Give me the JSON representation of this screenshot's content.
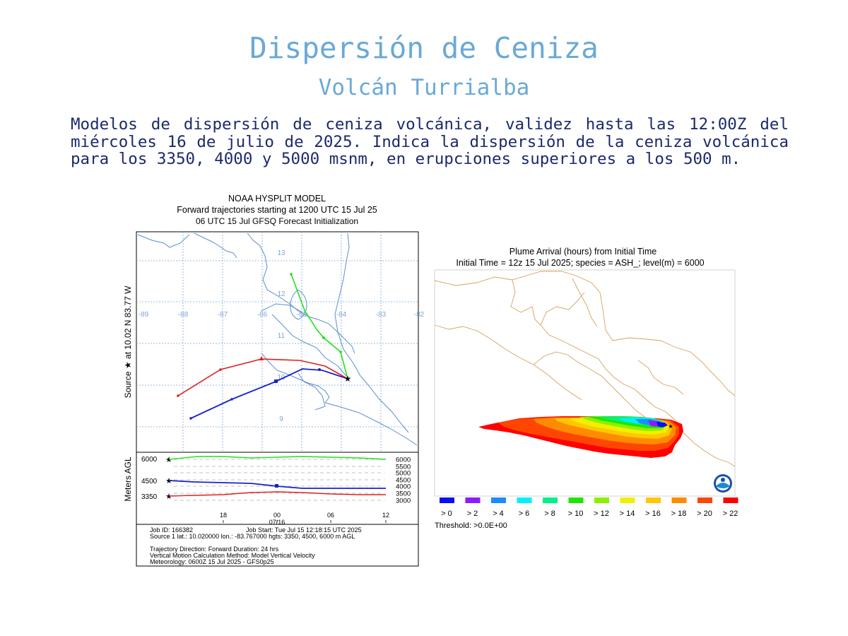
{
  "header": {
    "title": "Dispersión de Ceniza",
    "subtitle": "Volcán Turrialba",
    "description": "Modelos de dispersión de ceniza volcánica, validez hasta las 12:00Z del miércoles 16 de julio de 2025. Indica la dispersión de la ceniza volcánica para los 3350, 4000 y 5000 msnm, en erupciones superiores a los 500 m."
  },
  "trajectory_panel": {
    "title_line1": "NOAA HYSPLIT MODEL",
    "title_line2": "Forward trajectories starting at 1200 UTC 15 Jul 25",
    "title_line3": "06 UTC 15 Jul    GFSQ  Forecast Initialization",
    "source_label": "Source ★  at   10.02 N   83.77 W",
    "lon_labels": [
      "-89",
      "-88",
      "-87",
      "-86",
      "-85",
      "-84",
      "-83",
      "-82"
    ],
    "lat_labels": [
      "13",
      "12",
      "11",
      "10",
      "9"
    ],
    "height_axis_label": "Meters AGL",
    "height_left_labels": [
      "6000",
      "4500",
      "3350"
    ],
    "height_right_labels": [
      "6000",
      "5500",
      "5000",
      "4500",
      "4000",
      "3500",
      "3000"
    ],
    "time_labels": [
      "18",
      "00",
      "06",
      "12"
    ],
    "date_label": "07/16",
    "info_line1_left": "Job ID: 166382",
    "info_line1_right": "Job Start: Tue Jul 15 12:18:15 UTC 2025",
    "info_line2": "Source 1 lat.: 10.020000  lon.: -83.767000  hgts: 3350, 4500, 6000 m AGL",
    "info_line3": "Trajectory Direction: Forward      Duration: 24 hrs",
    "info_line4": "Vertical Motion Calculation Method:      Model Vertical Velocity",
    "info_line5": "Meteorology: 0600Z 15 Jul 2025 - GFS0p25",
    "colors": {
      "h3350": "#e0201c",
      "h4500": "#1a22c8",
      "h6000": "#22e01c",
      "grid": "#7aa6d8",
      "coast": "#5b8fd0"
    }
  },
  "plume_panel": {
    "title_line1": "Plume Arrival (hours) from Initial Time",
    "title_line2": "Initial Time = 12z 15 Jul 2025;  species = ASH_;  level(m) =  6000",
    "legend_labels": [
      "> 0",
      "> 2",
      "> 4",
      "> 6",
      "> 8",
      "> 10",
      "> 12",
      "> 14",
      "> 16",
      "> 18",
      "> 20",
      "> 22"
    ],
    "legend_colors": [
      "#0a0aff",
      "#8a1cff",
      "#1e8cff",
      "#00f0ff",
      "#00f08a",
      "#1ee600",
      "#8cf000",
      "#f0f000",
      "#ffc800",
      "#ff8c00",
      "#ff4600",
      "#ff0000"
    ],
    "threshold": "Threshold: >0.0E+00",
    "noaa_logo": "noaa-logo",
    "border_color": "#d8a060"
  }
}
